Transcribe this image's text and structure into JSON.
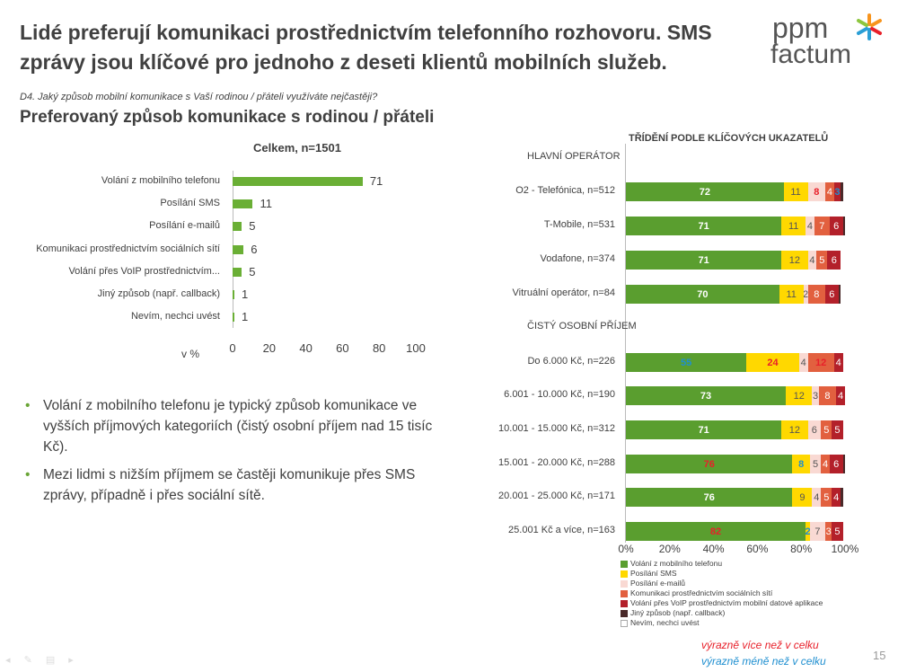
{
  "title": "Lidé preferují komunikaci prostřednictvím telefonního rozhovoru. SMS zprávy jsou klíčové pro jednoho z deseti klientů mobilních služeb.",
  "logo": {
    "line1": "ppm",
    "line2": "factum"
  },
  "question": "D4. Jaký způsob mobilní komunikace s Vaší rodinou / přáteli využíváte nejčastěji?",
  "subtitle": "Preferovaný způsob komunikace s rodinou / přáteli",
  "bullets": [
    "Volání z mobilního telefonu je typický způsob komunikace ve vyšších příjmových kategoriích (čistý osobní příjem nad 15 tisíc Kč).",
    "Mezi lidmi s nižším příjmem se častěji komunikuje přes SMS zprávy, případně i přes sociální sítě."
  ],
  "significance": {
    "more": "výrazně více než v celku",
    "less": "výrazně méně než v celku",
    "more_color": "#e8202a",
    "less_color": "#1f8fd0"
  },
  "page_number": "15",
  "chart_data": [
    {
      "type": "bar",
      "orientation": "horizontal",
      "title": "Celkem, n=1501",
      "xlabel": "v %",
      "xlim": [
        0,
        100
      ],
      "xticks": [
        0,
        20,
        40,
        60,
        80,
        100
      ],
      "categories": [
        "Volání z mobilního telefonu",
        "Posílání SMS",
        "Posílání e-mailů",
        "Komunikaci prostřednictvím sociálních sítí",
        "Volání přes VoIP prostřednictvím...",
        "Jiný způsob (např. callback)",
        "Nevím, nechci uvést"
      ],
      "values": [
        71,
        11,
        5,
        6,
        5,
        1,
        1
      ],
      "color": "#6aaf35"
    },
    {
      "type": "bar",
      "orientation": "horizontal",
      "stacked": true,
      "title": "TŘÍDĚNÍ PODLE KLÍČOVÝCH UKAZATELŮ",
      "xlim": [
        0,
        100
      ],
      "xticks": [
        "0%",
        "20%",
        "40%",
        "60%",
        "80%",
        "100%"
      ],
      "series": [
        {
          "name": "Volání z mobilního telefonu",
          "color": "#5a9e2f"
        },
        {
          "name": "Posílání SMS",
          "color": "#ffd800"
        },
        {
          "name": "Posílání e-mailů",
          "color": "#f9d9d3"
        },
        {
          "name": "Komunikaci prostřednictvím sociálních sítí",
          "color": "#e2603f"
        },
        {
          "name": "Volání přes VoIP prostřednictvím mobilní datové aplikace",
          "color": "#b3202a"
        },
        {
          "name": "Jiný způsob (např. callback)",
          "color": "#4a2a2a"
        },
        {
          "name": "Nevím, nechci uvést",
          "color": "#ffffff"
        }
      ],
      "groups": [
        {
          "header": "HLAVNÍ OPERÁTOR",
          "rows": [
            {
              "label": "O2 - Telefónica, n=512",
              "values": [
                72,
                11,
                8,
                4,
                3,
                1,
                1
              ],
              "labels": [
                "72",
                "11",
                "8",
                "4",
                "3",
                "",
                ""
              ],
              "sig": [
                "",
                "",
                "more",
                "",
                "less",
                "",
                ""
              ]
            },
            {
              "label": "T-Mobile, n=531",
              "values": [
                71,
                11,
                4,
                7,
                6,
                1,
                0
              ],
              "labels": [
                "71",
                "11",
                "4",
                "7",
                "6",
                "",
                ""
              ],
              "sig": [
                "",
                "",
                "",
                "",
                "",
                "",
                ""
              ]
            },
            {
              "label": "Vodafone, n=374",
              "values": [
                71,
                12,
                4,
                5,
                6,
                0,
                2
              ],
              "labels": [
                "71",
                "12",
                "4",
                "5",
                "6",
                "",
                ""
              ],
              "sig": [
                "",
                "",
                "",
                "",
                "",
                "",
                ""
              ]
            },
            {
              "label": "Vitruální operátor, n=84",
              "values": [
                70,
                11,
                2,
                8,
                6,
                1,
                2
              ],
              "labels": [
                "70",
                "11",
                "2",
                "8",
                "6",
                "",
                ""
              ],
              "sig": [
                "",
                "",
                "",
                "",
                "",
                "",
                ""
              ]
            }
          ]
        },
        {
          "header": "ČISTÝ OSOBNÍ PŘÍJEM",
          "rows": [
            {
              "label": "Do 6.000 Kč, n=226",
              "values": [
                55,
                24,
                4,
                12,
                4,
                0,
                1
              ],
              "labels": [
                "55",
                "24",
                "4",
                "12",
                "4",
                "",
                ""
              ],
              "sig": [
                "less",
                "more",
                "",
                "more",
                "",
                "",
                ""
              ]
            },
            {
              "label": "6.001 - 10.000 Kč, n=190",
              "values": [
                73,
                12,
                3,
                8,
                4,
                0,
                0
              ],
              "labels": [
                "73",
                "12",
                "3",
                "8",
                "4",
                "",
                ""
              ],
              "sig": [
                "",
                "",
                "",
                "",
                "",
                "",
                ""
              ]
            },
            {
              "label": "10.001 - 15.000 Kč, n=312",
              "values": [
                71,
                12,
                6,
                5,
                5,
                0,
                1
              ],
              "labels": [
                "71",
                "12",
                "6",
                "5",
                "5",
                "",
                ""
              ],
              "sig": [
                "",
                "",
                "",
                "",
                "",
                "",
                ""
              ]
            },
            {
              "label": "15.001 - 20.000 Kč, n=288",
              "values": [
                76,
                8,
                5,
                4,
                6,
                1,
                0
              ],
              "labels": [
                "76",
                "8",
                "5",
                "4",
                "6",
                "",
                ""
              ],
              "sig": [
                "more",
                "less",
                "",
                "",
                "",
                "",
                ""
              ]
            },
            {
              "label": "20.001 - 25.000 Kč, n=171",
              "values": [
                76,
                9,
                4,
                5,
                4,
                1,
                1
              ],
              "labels": [
                "76",
                "9",
                "4",
                "5",
                "4",
                "",
                ""
              ],
              "sig": [
                "",
                "",
                "",
                "",
                "",
                "",
                ""
              ]
            },
            {
              "label": "25.001 Kč a více, n=163",
              "values": [
                82,
                2,
                7,
                3,
                5,
                0,
                1
              ],
              "labels": [
                "82",
                "2",
                "7",
                "3",
                "5",
                "",
                ""
              ],
              "sig": [
                "more",
                "less",
                "",
                "",
                "",
                "",
                ""
              ]
            }
          ]
        }
      ]
    }
  ]
}
